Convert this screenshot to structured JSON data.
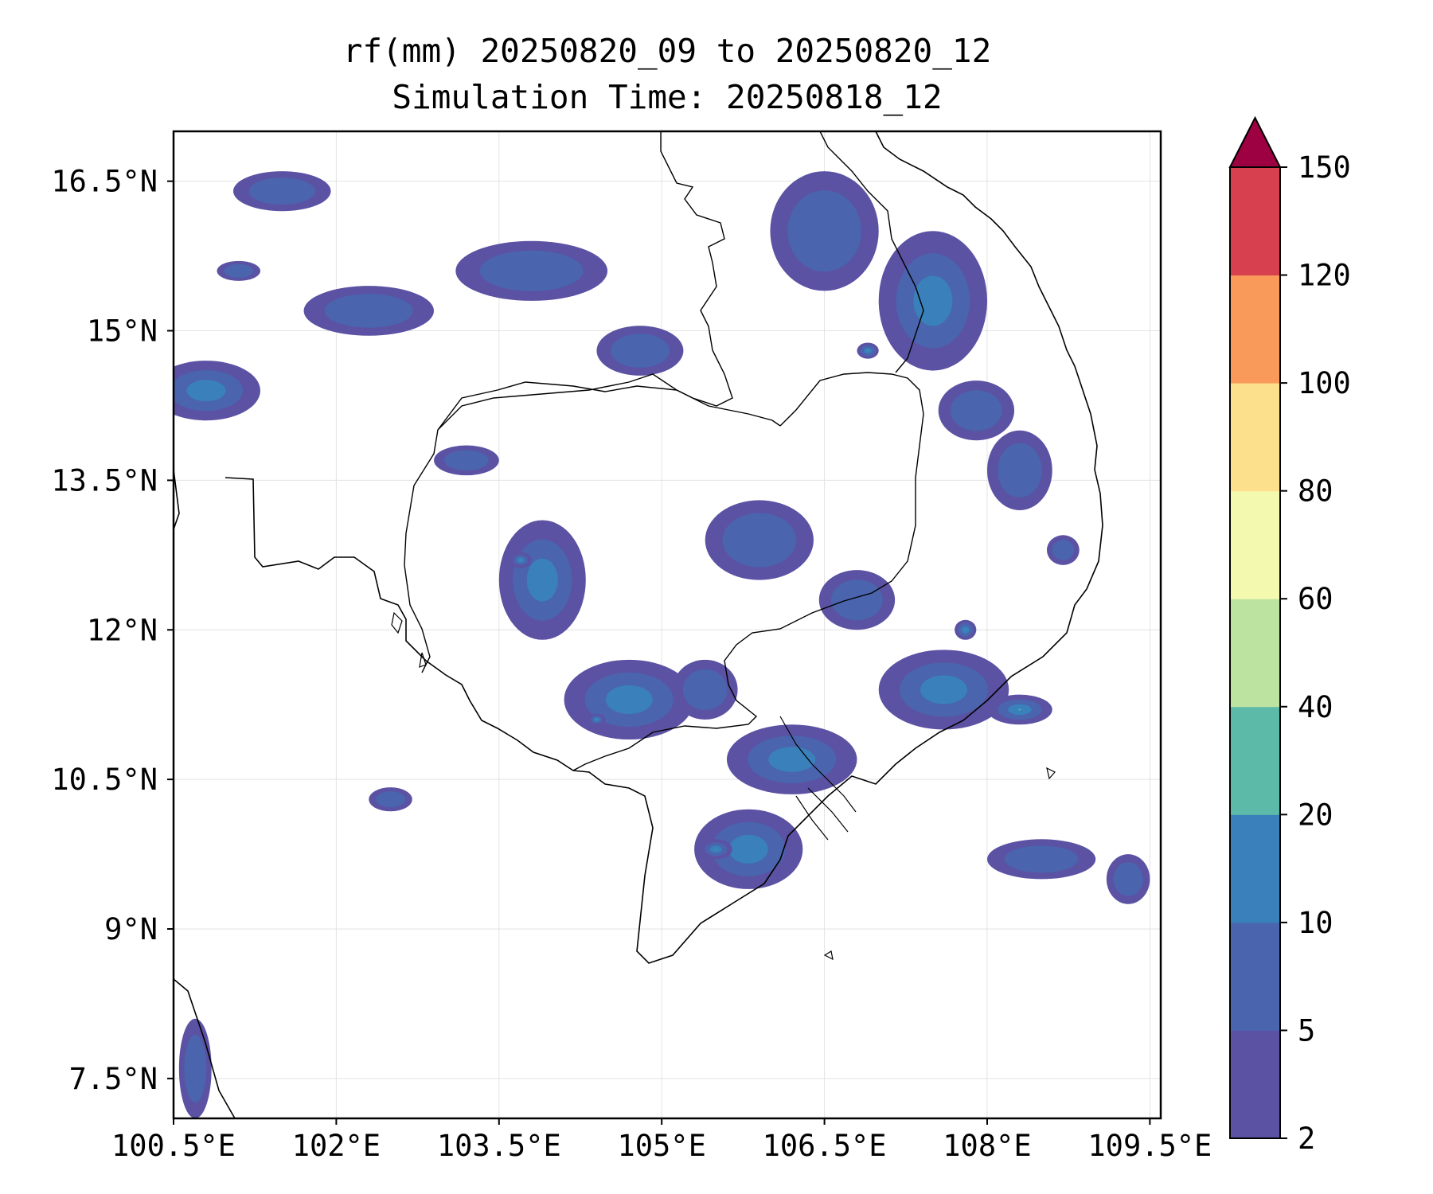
{
  "title": {
    "line1": "rf(mm) 20250820_09 to 20250820_12",
    "line2": "Simulation Time: 20250818_12"
  },
  "map": {
    "lon_range": [
      100.5,
      109.6
    ],
    "lat_range": [
      7.1,
      17.0
    ],
    "x_ticks": [
      {
        "value": 100.5,
        "label": "100.5°E"
      },
      {
        "value": 102.0,
        "label": "102°E"
      },
      {
        "value": 103.5,
        "label": "103.5°E"
      },
      {
        "value": 105.0,
        "label": "105°E"
      },
      {
        "value": 106.5,
        "label": "106.5°E"
      },
      {
        "value": 108.0,
        "label": "108°E"
      },
      {
        "value": 109.5,
        "label": "109.5°E"
      }
    ],
    "y_ticks": [
      {
        "value": 16.5,
        "label": "16.5°N"
      },
      {
        "value": 15.0,
        "label": "15°N"
      },
      {
        "value": 13.5,
        "label": "13.5°N"
      },
      {
        "value": 12.0,
        "label": "12°N"
      },
      {
        "value": 10.5,
        "label": "10.5°N"
      },
      {
        "value": 9.0,
        "label": "9°N"
      },
      {
        "value": 7.5,
        "label": "7.5°N"
      }
    ],
    "grid": true,
    "coastline_color": "#000000"
  },
  "colorbar": {
    "levels": [
      "2",
      "5",
      "10",
      "20",
      "40",
      "60",
      "80",
      "100",
      "120",
      "150"
    ],
    "colors": [
      "#5b52a3",
      "#4a64ae",
      "#3a80ba",
      "#5cbaa8",
      "#bde3a1",
      "#f3fab0",
      "#fde08c",
      "#f99a5a",
      "#d7404e"
    ],
    "extend_color": "#9e0142"
  },
  "rain_cells": [
    {
      "lon": 101.5,
      "lat": 16.4,
      "rx": 0.45,
      "ry": 0.2,
      "level": 1
    },
    {
      "lon": 102.3,
      "lat": 15.2,
      "rx": 0.6,
      "ry": 0.25,
      "level": 1
    },
    {
      "lon": 100.8,
      "lat": 14.4,
      "rx": 0.5,
      "ry": 0.3,
      "level": 2
    },
    {
      "lon": 103.8,
      "lat": 15.6,
      "rx": 0.7,
      "ry": 0.3,
      "level": 1
    },
    {
      "lon": 106.5,
      "lat": 16.0,
      "rx": 0.5,
      "ry": 0.6,
      "level": 1
    },
    {
      "lon": 107.5,
      "lat": 15.3,
      "rx": 0.5,
      "ry": 0.7,
      "level": 2
    },
    {
      "lon": 103.9,
      "lat": 12.5,
      "rx": 0.4,
      "ry": 0.6,
      "level": 2
    },
    {
      "lon": 104.7,
      "lat": 11.3,
      "rx": 0.6,
      "ry": 0.4,
      "level": 2
    },
    {
      "lon": 105.9,
      "lat": 12.9,
      "rx": 0.5,
      "ry": 0.4,
      "level": 1
    },
    {
      "lon": 107.6,
      "lat": 11.4,
      "rx": 0.6,
      "ry": 0.4,
      "level": 2
    },
    {
      "lon": 108.3,
      "lat": 11.2,
      "rx": 0.3,
      "ry": 0.15,
      "level": 3
    },
    {
      "lon": 106.2,
      "lat": 10.7,
      "rx": 0.6,
      "ry": 0.35,
      "level": 2
    },
    {
      "lon": 105.8,
      "lat": 9.8,
      "rx": 0.5,
      "ry": 0.4,
      "level": 2
    },
    {
      "lon": 105.5,
      "lat": 9.8,
      "rx": 0.15,
      "ry": 0.1,
      "level": 3
    },
    {
      "lon": 108.5,
      "lat": 9.7,
      "rx": 0.5,
      "ry": 0.2,
      "level": 1
    },
    {
      "lon": 109.3,
      "lat": 9.5,
      "rx": 0.2,
      "ry": 0.25,
      "level": 1
    },
    {
      "lon": 108.3,
      "lat": 13.6,
      "rx": 0.3,
      "ry": 0.4,
      "level": 1
    },
    {
      "lon": 108.7,
      "lat": 12.8,
      "rx": 0.15,
      "ry": 0.15,
      "level": 1
    },
    {
      "lon": 100.7,
      "lat": 7.6,
      "rx": 0.15,
      "ry": 0.5,
      "level": 1
    },
    {
      "lon": 102.5,
      "lat": 10.3,
      "rx": 0.2,
      "ry": 0.12,
      "level": 1
    },
    {
      "lon": 103.2,
      "lat": 13.7,
      "rx": 0.3,
      "ry": 0.15,
      "level": 1
    },
    {
      "lon": 104.8,
      "lat": 14.8,
      "rx": 0.4,
      "ry": 0.25,
      "level": 1
    },
    {
      "lon": 107.9,
      "lat": 14.2,
      "rx": 0.35,
      "ry": 0.3,
      "level": 1
    },
    {
      "lon": 103.7,
      "lat": 12.7,
      "rx": 0.1,
      "ry": 0.08,
      "level": 3
    },
    {
      "lon": 104.4,
      "lat": 11.1,
      "rx": 0.08,
      "ry": 0.06,
      "level": 3
    },
    {
      "lon": 106.9,
      "lat": 14.8,
      "rx": 0.1,
      "ry": 0.08,
      "level": 3
    },
    {
      "lon": 107.8,
      "lat": 12.0,
      "rx": 0.1,
      "ry": 0.1,
      "level": 3
    },
    {
      "lon": 105.4,
      "lat": 11.4,
      "rx": 0.3,
      "ry": 0.3,
      "level": 1
    },
    {
      "lon": 106.8,
      "lat": 12.3,
      "rx": 0.35,
      "ry": 0.3,
      "level": 1
    },
    {
      "lon": 101.1,
      "lat": 15.6,
      "rx": 0.2,
      "ry": 0.1,
      "level": 1
    }
  ]
}
